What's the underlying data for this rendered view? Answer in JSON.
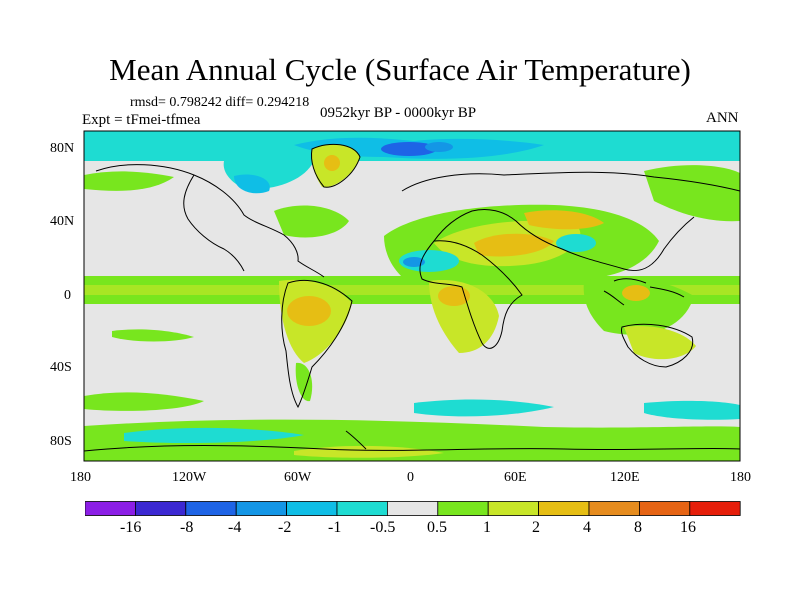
{
  "header": {
    "title": "Mean Annual Cycle (Surface Air Temperature)",
    "stats": "rmsd= 0.798242 diff= 0.294218",
    "experiment": "Expt = tFmei-tfmea",
    "period": "0952kyr BP - 0000kyr BP",
    "season": "ANN"
  },
  "map": {
    "lat_labels": [
      "80N",
      "40N",
      "0",
      "40S",
      "80S"
    ],
    "lon_labels": [
      "180",
      "120W",
      "60W",
      "0",
      "60E",
      "120E",
      "180"
    ],
    "land_fill": "#e6e6e6",
    "coastline_color": "#000000"
  },
  "colorbar": {
    "labels": [
      "-16",
      "-8",
      "-4",
      "-2",
      "-1",
      "-0.5",
      "0.5",
      "1",
      "2",
      "4",
      "8",
      "16"
    ],
    "colors": [
      "#8c1ee6",
      "#3c28d2",
      "#1e64e6",
      "#1496e6",
      "#0fbee6",
      "#1edcd2",
      "#e6e6e6",
      "#78e61e",
      "#c8e628",
      "#e6be14",
      "#e68c1e",
      "#e66414",
      "#e61e0a"
    ]
  }
}
